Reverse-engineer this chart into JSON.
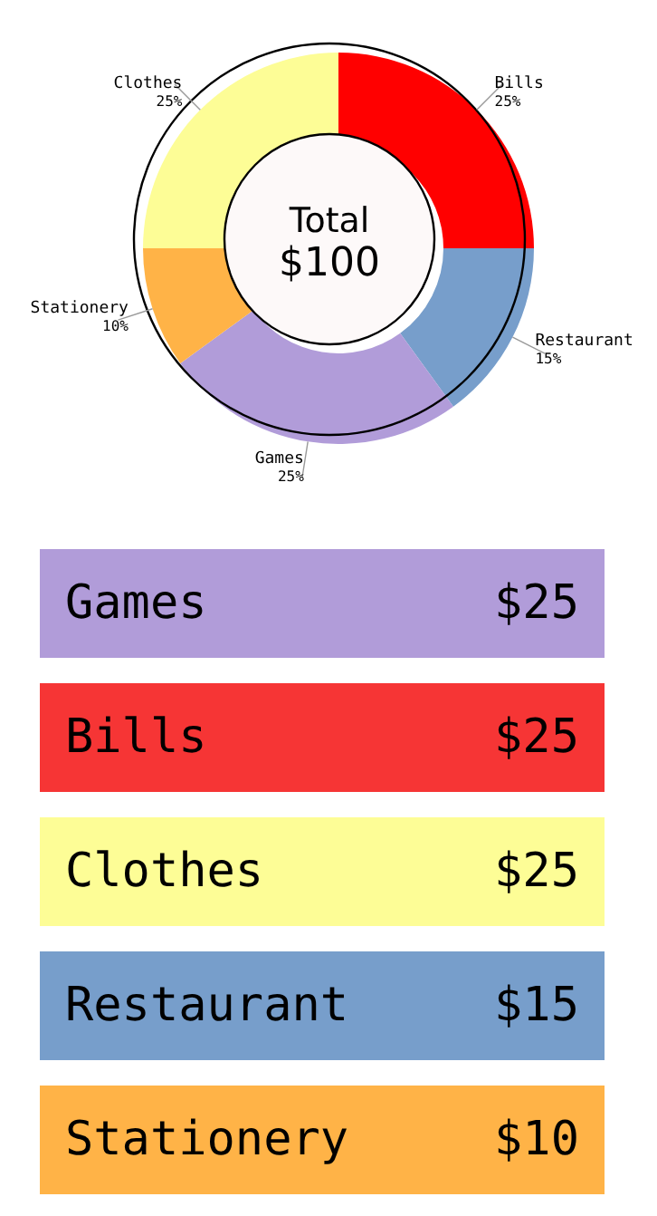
{
  "chart_data": [
    {
      "type": "donut",
      "categories": [
        "Bills",
        "Restaurant",
        "Games",
        "Stationery",
        "Clothes"
      ],
      "values": [
        25,
        15,
        25,
        10,
        25
      ],
      "value_labels": [
        "25%",
        "15%",
        "25%",
        "10%",
        "25%"
      ],
      "colors": [
        "#ff0000",
        "#779ecb",
        "#b19cd9",
        "#ffb347",
        "#fdfd96"
      ],
      "annotations": [
        "Total",
        "$100"
      ]
    },
    {
      "type": "other",
      "categories": [
        "Games",
        "Bills",
        "Clothes",
        "Restaurant",
        "Stationery"
      ],
      "value_labels": [
        "$25",
        "$25",
        "$25",
        "$15",
        "$10"
      ],
      "colors": [
        "#b19cd9",
        "#f63535",
        "#fdfd96",
        "#779ecb",
        "#ffb347"
      ]
    }
  ]
}
